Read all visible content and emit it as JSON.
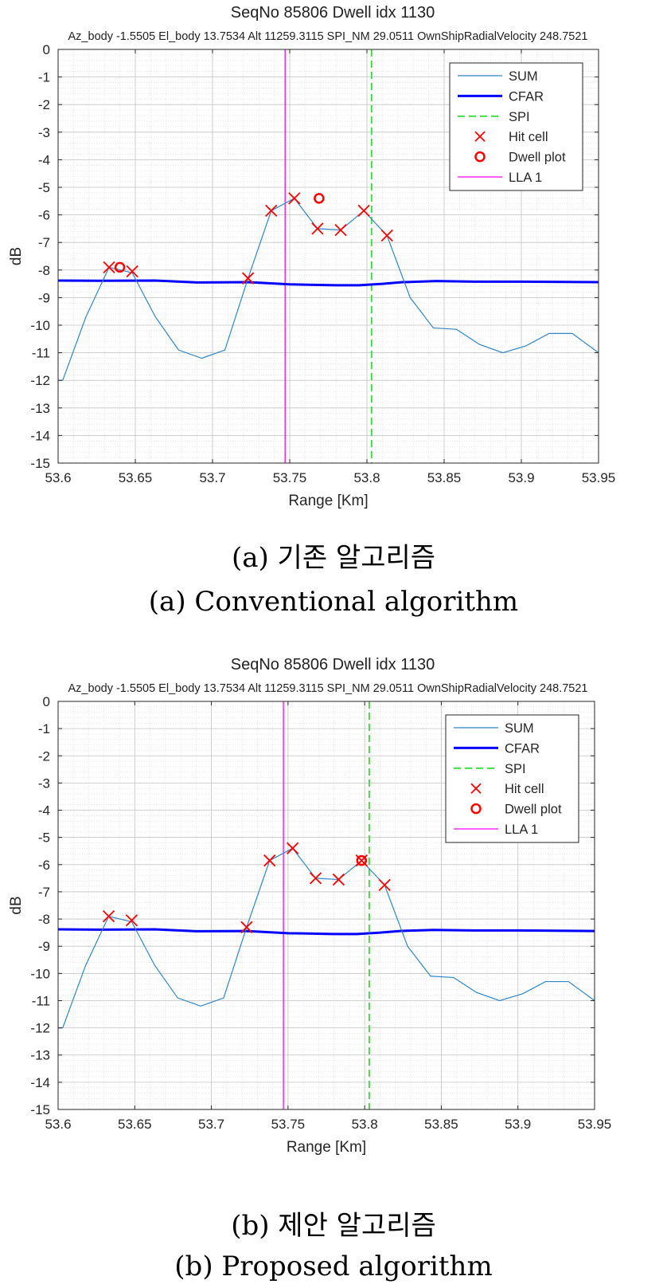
{
  "captions": {
    "a_ko": "(a)  기존  알고리즘",
    "a_en": "(a)  Conventional  algorithm",
    "b_ko": "(b)  제안  알고리즘",
    "b_en": "(b)  Proposed  algorithm"
  },
  "colors": {
    "sum": "#2f86c8",
    "cfar": "#0000ff",
    "spi": "#33dd33",
    "hit": "#ff0000",
    "plot": "#ff0000",
    "lla": "#ff00ff",
    "grid": "#d8d8d8"
  },
  "chart_data": [
    {
      "id": "a",
      "type": "line",
      "title": "SeqNo 85806   Dwell idx 1130",
      "subtitle": "Az_body -1.5505    El_body 13.7534    Alt 11259.3115    SPI_NM 29.0511    OwnShipRadialVelocity 248.7521",
      "xlabel": "Range [Km]",
      "ylabel": "dB",
      "xlim": [
        53.6,
        53.95
      ],
      "ylim": [
        -15,
        0
      ],
      "xticks": [
        53.6,
        53.65,
        53.7,
        53.75,
        53.8,
        53.85,
        53.9,
        53.95
      ],
      "xtick_labels": [
        "53.6",
        "53.65",
        "53.7",
        "53.75",
        "53.8",
        "53.85",
        "53.9",
        "53.95"
      ],
      "yticks": [
        0,
        -1,
        -2,
        -3,
        -4,
        -5,
        -6,
        -7,
        -8,
        -9,
        -10,
        -11,
        -12,
        -13,
        -14,
        -15
      ],
      "ytick_labels": [
        "0",
        "-1",
        "-2",
        "-3",
        "-4",
        "-5",
        "-6",
        "-7",
        "-8",
        "-9",
        "-10",
        "-11",
        "-12",
        "-13",
        "-14",
        "-15"
      ],
      "grid": true,
      "legend_position": "top-right",
      "legend": [
        "SUM",
        "CFAR",
        "SPI",
        "Hit cell",
        "Dwell plot",
        "LLA 1"
      ],
      "series": [
        {
          "name": "SUM",
          "kind": "line",
          "x": [
            53.6,
            53.603,
            53.618,
            53.633,
            53.648,
            53.663,
            53.678,
            53.693,
            53.708,
            53.723,
            53.738,
            53.753,
            53.768,
            53.783,
            53.798,
            53.813,
            53.828,
            53.843,
            53.858,
            53.873,
            53.888,
            53.903,
            53.918,
            53.933,
            53.95
          ],
          "y": [
            -12.0,
            -12.0,
            -9.7,
            -7.9,
            -8.1,
            -9.7,
            -10.9,
            -11.2,
            -10.9,
            -8.3,
            -5.85,
            -5.4,
            -6.5,
            -6.55,
            -5.85,
            -6.75,
            -9.0,
            -10.1,
            -10.15,
            -10.7,
            -11.0,
            -10.75,
            -10.3,
            -10.3,
            -11.0
          ]
        },
        {
          "name": "CFAR",
          "kind": "line",
          "x": [
            53.6,
            53.625,
            53.663,
            53.69,
            53.723,
            53.75,
            53.78,
            53.795,
            53.81,
            53.823,
            53.845,
            53.87,
            53.9,
            53.95
          ],
          "y": [
            -8.38,
            -8.39,
            -8.38,
            -8.45,
            -8.44,
            -8.52,
            -8.55,
            -8.55,
            -8.5,
            -8.44,
            -8.4,
            -8.42,
            -8.42,
            -8.44
          ]
        },
        {
          "name": "SPI",
          "kind": "vline",
          "x": 53.803
        },
        {
          "name": "Hit cell",
          "kind": "marker-x",
          "x": [
            53.633,
            53.648,
            53.723,
            53.738,
            53.753,
            53.768,
            53.783,
            53.798,
            53.813
          ],
          "y": [
            -7.9,
            -8.05,
            -8.3,
            -5.85,
            -5.4,
            -6.5,
            -6.55,
            -5.85,
            -6.75
          ]
        },
        {
          "name": "Dwell plot",
          "kind": "marker-o",
          "x": [
            53.64,
            53.769
          ],
          "y": [
            -7.9,
            -5.4
          ]
        },
        {
          "name": "LLA 1",
          "kind": "vline",
          "x": 53.747
        }
      ]
    },
    {
      "id": "b",
      "type": "line",
      "title": "SeqNo 85806   Dwell idx 1130",
      "subtitle": "Az_body -1.5505    El_body 13.7534    Alt 11259.3115    SPI_NM 29.0511    OwnShipRadialVelocity 248.7521",
      "xlabel": "Range [Km]",
      "ylabel": "dB",
      "xlim": [
        53.6,
        53.95
      ],
      "ylim": [
        -15,
        0
      ],
      "xticks": [
        53.6,
        53.65,
        53.7,
        53.75,
        53.8,
        53.85,
        53.9,
        53.95
      ],
      "xtick_labels": [
        "53.6",
        "53.65",
        "53.7",
        "53.75",
        "53.8",
        "53.85",
        "53.9",
        "53.95"
      ],
      "yticks": [
        0,
        -1,
        -2,
        -3,
        -4,
        -5,
        -6,
        -7,
        -8,
        -9,
        -10,
        -11,
        -12,
        -13,
        -14,
        -15
      ],
      "ytick_labels": [
        "0",
        "-1",
        "-2",
        "-3",
        "-4",
        "-5",
        "-6",
        "-7",
        "-8",
        "-9",
        "-10",
        "-11",
        "-12",
        "-13",
        "-14",
        "-15"
      ],
      "grid": true,
      "legend_position": "top-right",
      "legend": [
        "SUM",
        "CFAR",
        "SPI",
        "Hit cell",
        "Dwell plot",
        "LLA 1"
      ],
      "series": [
        {
          "name": "SUM",
          "kind": "line",
          "x": [
            53.6,
            53.603,
            53.618,
            53.633,
            53.648,
            53.663,
            53.678,
            53.693,
            53.708,
            53.723,
            53.738,
            53.753,
            53.768,
            53.783,
            53.798,
            53.813,
            53.828,
            53.843,
            53.858,
            53.873,
            53.888,
            53.903,
            53.918,
            53.933,
            53.95
          ],
          "y": [
            -12.0,
            -12.0,
            -9.7,
            -7.9,
            -8.1,
            -9.7,
            -10.9,
            -11.2,
            -10.9,
            -8.3,
            -5.85,
            -5.4,
            -6.5,
            -6.55,
            -5.85,
            -6.75,
            -9.0,
            -10.1,
            -10.15,
            -10.7,
            -11.0,
            -10.75,
            -10.3,
            -10.3,
            -11.0
          ]
        },
        {
          "name": "CFAR",
          "kind": "line",
          "x": [
            53.6,
            53.625,
            53.663,
            53.69,
            53.723,
            53.75,
            53.78,
            53.795,
            53.81,
            53.823,
            53.845,
            53.87,
            53.9,
            53.95
          ],
          "y": [
            -8.38,
            -8.39,
            -8.38,
            -8.45,
            -8.44,
            -8.52,
            -8.55,
            -8.55,
            -8.5,
            -8.44,
            -8.4,
            -8.42,
            -8.42,
            -8.44
          ]
        },
        {
          "name": "SPI",
          "kind": "vline",
          "x": 53.803
        },
        {
          "name": "Hit cell",
          "kind": "marker-x",
          "x": [
            53.633,
            53.648,
            53.723,
            53.738,
            53.753,
            53.768,
            53.783,
            53.798,
            53.813
          ],
          "y": [
            -7.9,
            -8.05,
            -8.3,
            -5.85,
            -5.4,
            -6.5,
            -6.55,
            -5.85,
            -6.75
          ]
        },
        {
          "name": "Dwell plot",
          "kind": "marker-o",
          "x": [
            53.798
          ],
          "y": [
            -5.85
          ]
        },
        {
          "name": "LLA 1",
          "kind": "vline",
          "x": 53.747
        }
      ]
    }
  ]
}
